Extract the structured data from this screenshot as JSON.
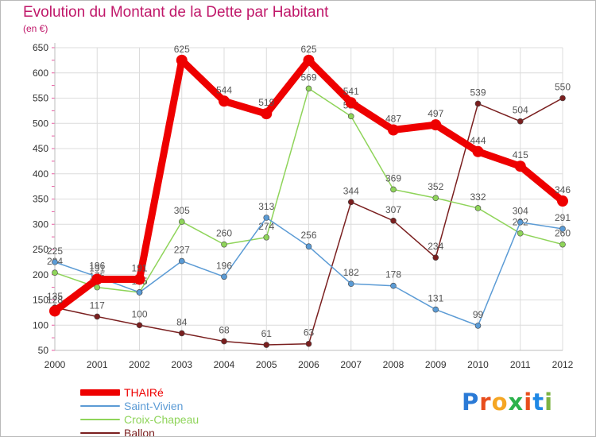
{
  "title": "Evolution du Montant de la Dette par Habitant",
  "subtitle": "(en €)",
  "brand": {
    "letters": [
      "P",
      "r",
      "o",
      "x",
      "i",
      "t",
      "i"
    ],
    "colors": [
      "#2a7ad6",
      "#e84d1c",
      "#f5a623",
      "#2bb24c",
      "#e84d1c",
      "#1e88e5",
      "#7cb342"
    ]
  },
  "chart_data": {
    "type": "line",
    "title": "Evolution du Montant de la Dette par Habitant",
    "ylabel": "(en €)",
    "xlabel": "",
    "x": [
      "2000",
      "2001",
      "2002",
      "2003",
      "2004",
      "2005",
      "2006",
      "2007",
      "2008",
      "2009",
      "2010",
      "2011",
      "2012"
    ],
    "yticks": [
      50,
      100,
      150,
      200,
      250,
      300,
      350,
      400,
      450,
      500,
      550,
      600,
      650
    ],
    "ylim": [
      50,
      650
    ],
    "grid": true,
    "legend": "bottom-left",
    "series": [
      {
        "name": "Ballon",
        "color": "#7a1f1f",
        "values": [
          135,
          117,
          100,
          84,
          68,
          61,
          63,
          344,
          307,
          234,
          539,
          504,
          550
        ],
        "labels": [
          "135",
          "117",
          "100",
          "84",
          "68",
          "61",
          "63",
          "344",
          "307",
          "234",
          "539",
          "504",
          "550"
        ]
      },
      {
        "name": "Croix-Chapeau",
        "color": "#8fd45a",
        "values": [
          204,
          175,
          165,
          305,
          260,
          274,
          569,
          514,
          369,
          352,
          332,
          282,
          260
        ],
        "labels": [
          "204",
          "175",
          "165",
          "305",
          "260",
          "274",
          "569",
          "514",
          "369",
          "352",
          "332",
          "282",
          "260"
        ]
      },
      {
        "name": "Saint-Vivien",
        "color": "#5b9bd5",
        "values": [
          225,
          196,
          165,
          227,
          196,
          313,
          256,
          182,
          178,
          131,
          99,
          304,
          291
        ],
        "labels": [
          "225",
          "196",
          "165",
          "227",
          "196",
          "313",
          "256",
          "182",
          "178",
          "131",
          "99",
          "304",
          "291"
        ]
      },
      {
        "name": "THAIRé",
        "color": "#ee0000",
        "values": [
          128,
          191,
          191,
          625,
          544,
          519,
          625,
          541,
          487,
          497,
          444,
          415,
          346
        ],
        "labels": [
          "128",
          "191",
          "191",
          "625",
          "544",
          "519",
          "625",
          "541",
          "487",
          "497",
          "444",
          "415",
          "346"
        ]
      }
    ]
  }
}
